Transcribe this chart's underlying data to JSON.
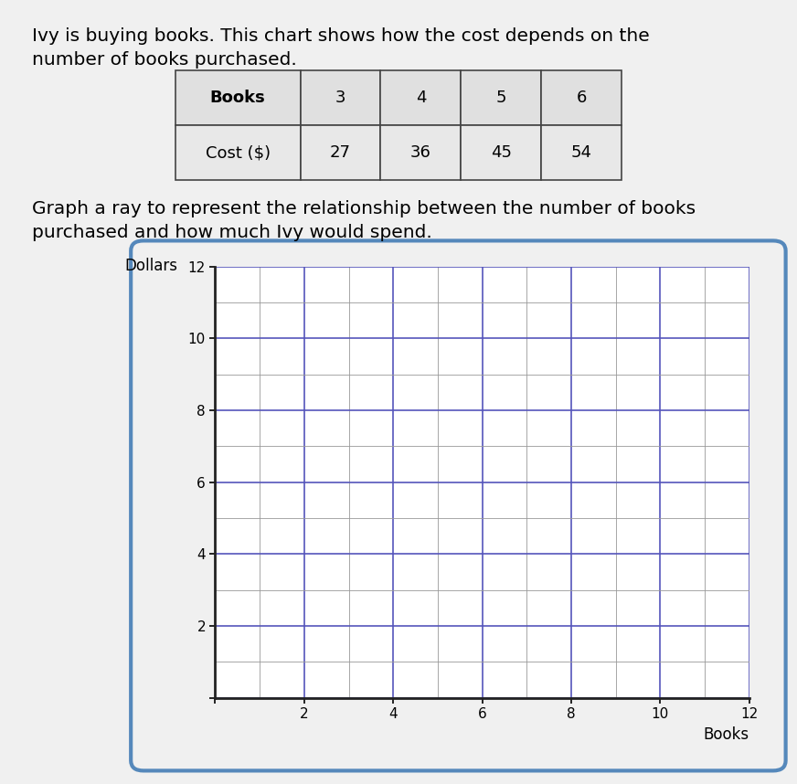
{
  "title_line1": "Ivy is buying books. This chart shows how the cost depends on the",
  "title_line2": "number of books purchased.",
  "instruction_line1": "Graph a ray to represent the relationship between the number of books",
  "instruction_line2": "purchased and how much Ivy would spend.",
  "table_headers": [
    "Books",
    "3",
    "4",
    "5",
    "6"
  ],
  "table_row": [
    "Cost ($)",
    "27",
    "36",
    "45",
    "54"
  ],
  "xlabel": "Books",
  "ylabel": "Dollars",
  "xmin": 0,
  "xmax": 12,
  "ymin": 0,
  "ymax": 12,
  "grid_minor_color": "#999999",
  "grid_major_color": "#5555bb",
  "background_color": "#f0f0f0",
  "plot_bg_color": "#ffffff",
  "outer_border_color": "#5588bb",
  "axis_color": "#222222",
  "text_color": "#000000",
  "title_fontsize": 14.5,
  "label_fontsize": 12,
  "tick_fontsize": 11,
  "table_border_color": "#444444",
  "header_bg": "#e0e0e0",
  "row_bg": "#e8e8e8"
}
